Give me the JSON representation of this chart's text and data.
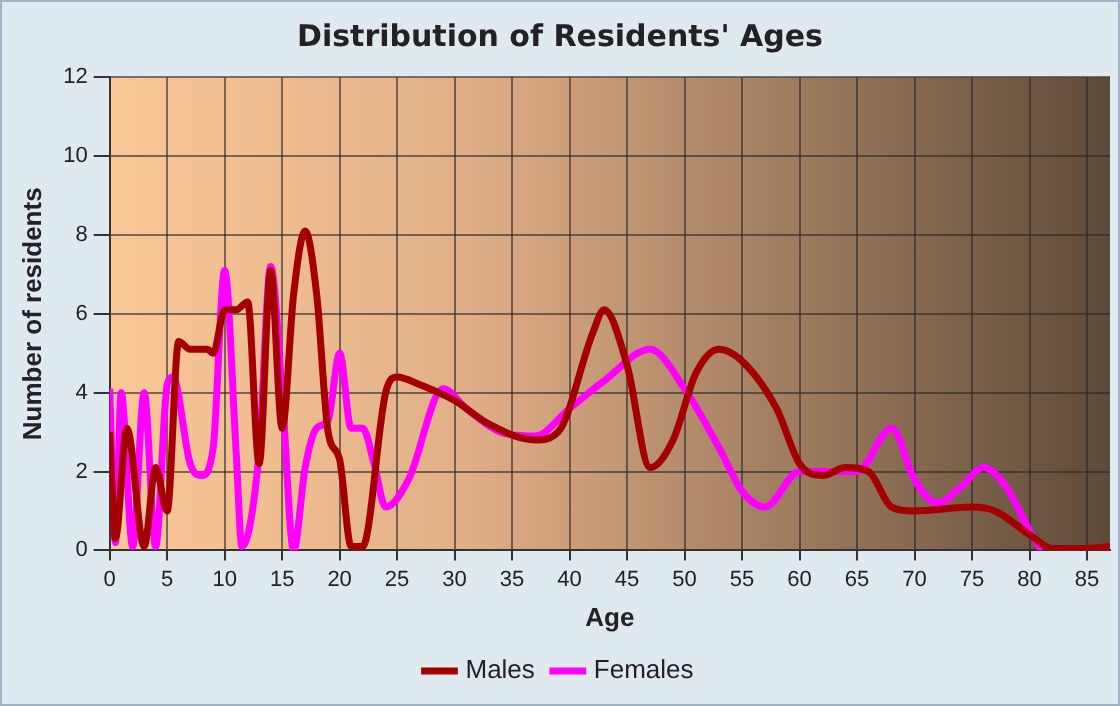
{
  "chart_data": {
    "type": "line",
    "title": "Distribution of Residents' Ages",
    "xlabel": "Age",
    "ylabel": "Number of residents",
    "xlim": [
      0,
      87
    ],
    "xticks": [
      0,
      5,
      10,
      15,
      20,
      25,
      30,
      35,
      40,
      45,
      50,
      55,
      60,
      65,
      70,
      75,
      80,
      85
    ],
    "ylim": [
      0,
      12
    ],
    "yticks": [
      0,
      2,
      4,
      6,
      8,
      10,
      12
    ],
    "grid": true,
    "legend": "bottom",
    "marker": "none",
    "series": [
      {
        "name": "Males",
        "color": "#a50000",
        "x": [
          0,
          0.5,
          1.5,
          3,
          4,
          5,
          6,
          7,
          8.5,
          9,
          10,
          11,
          12,
          13,
          14,
          15,
          16,
          17,
          18,
          19,
          20,
          21,
          22,
          24,
          25,
          27,
          30,
          33,
          37,
          39,
          42,
          43,
          45,
          47,
          49,
          51,
          53,
          55,
          58,
          60,
          62,
          64,
          66,
          68,
          70,
          75,
          77,
          80,
          82,
          85,
          87
        ],
        "values": [
          3,
          0.3,
          3.1,
          0.1,
          2.1,
          1,
          5.3,
          5.1,
          5.1,
          5,
          6.1,
          6.1,
          6.3,
          2.2,
          7.1,
          3.1,
          6.5,
          8.1,
          6.5,
          3,
          2.3,
          0.1,
          0.1,
          4,
          4.4,
          4.2,
          3.8,
          3.2,
          2.8,
          3,
          5.5,
          6.1,
          4.7,
          2.1,
          2.8,
          4.5,
          5.1,
          4.8,
          3.6,
          2.2,
          1.9,
          2.1,
          2,
          1.1,
          1,
          1.1,
          1,
          0.4,
          0.05,
          0.05,
          0.1
        ]
      },
      {
        "name": "Females",
        "color": "#ff00ff",
        "x": [
          0,
          0.5,
          1,
          2,
          3,
          4,
          5,
          5.5,
          7,
          8,
          9,
          10,
          11,
          11.5,
          13,
          14,
          15,
          16,
          17,
          18,
          19,
          20,
          21,
          22,
          23,
          24,
          26,
          29,
          31,
          34,
          37,
          40,
          43,
          47,
          50,
          53,
          55,
          57,
          60,
          62,
          65,
          68,
          70,
          72,
          74,
          76,
          78,
          80,
          81
        ],
        "values": [
          4.1,
          0.2,
          4,
          0.1,
          4,
          0.1,
          4.2,
          4.4,
          2.2,
          1.9,
          2.6,
          7.1,
          2.5,
          0.1,
          2.5,
          7.2,
          4,
          0,
          2.1,
          3.1,
          3.3,
          5,
          3.1,
          3.1,
          2.2,
          1.1,
          1.8,
          4.1,
          3.6,
          3,
          2.9,
          3.6,
          4.3,
          5.1,
          4.1,
          2.6,
          1.5,
          1.1,
          2,
          2,
          2,
          3.1,
          1.8,
          1.2,
          1.6,
          2.1,
          1.6,
          0.5,
          0
        ]
      }
    ]
  }
}
